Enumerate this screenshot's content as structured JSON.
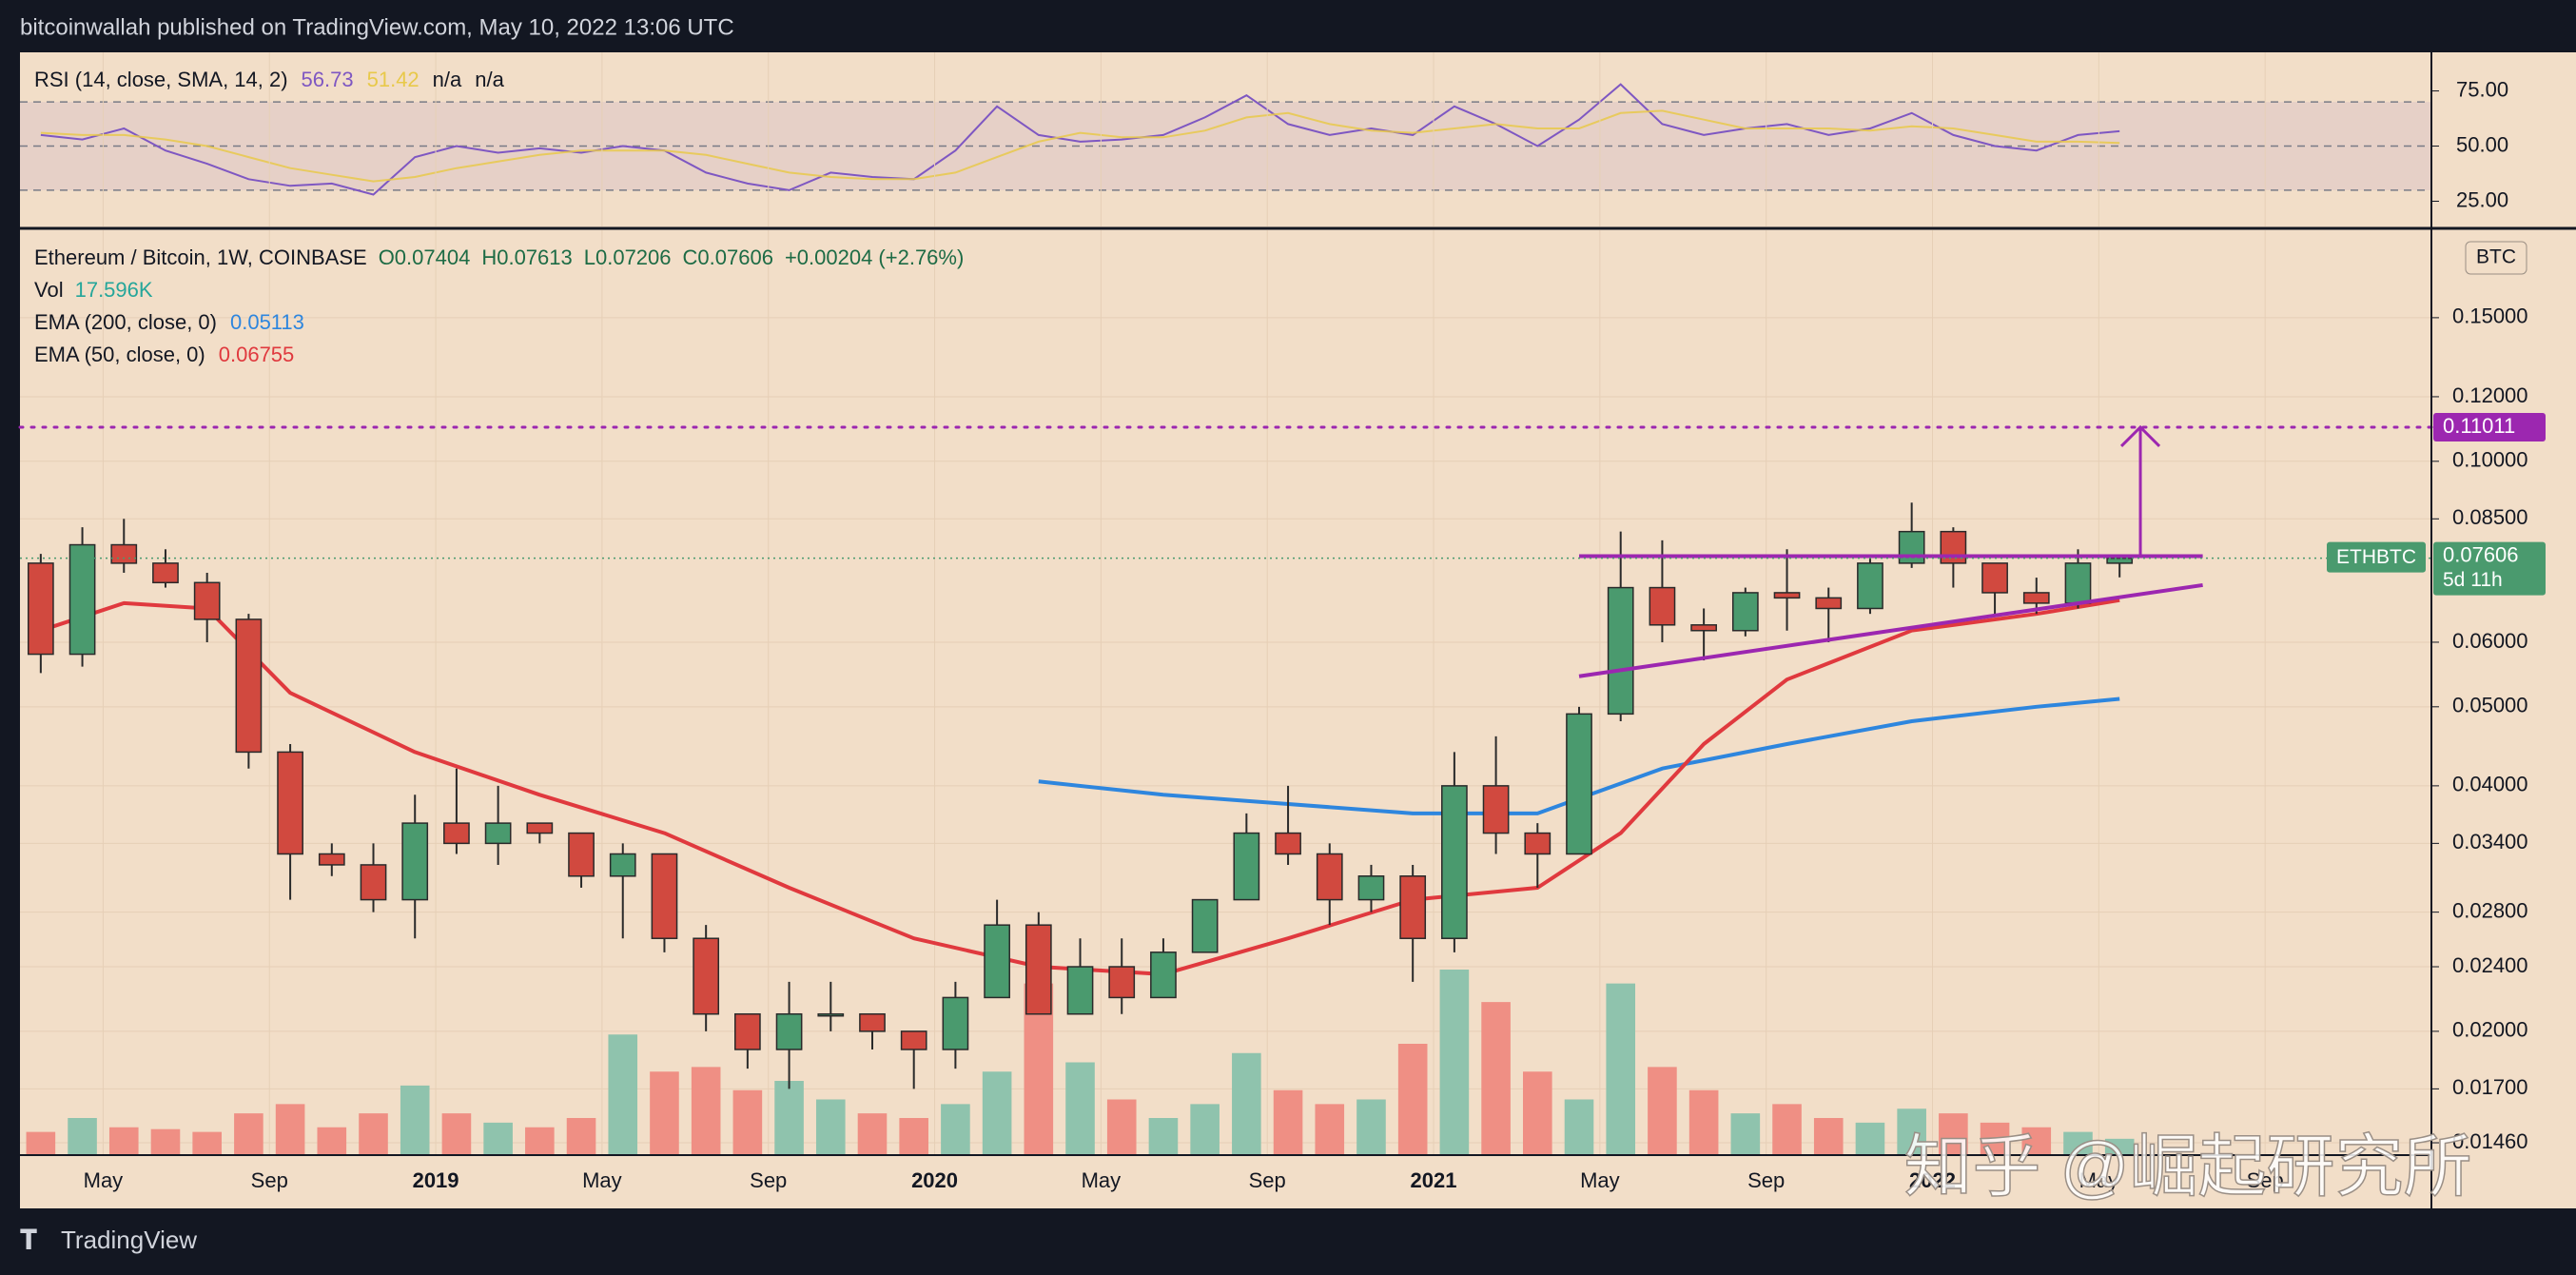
{
  "header": {
    "title": "bitcoinwallah published on TradingView.com, May 10, 2022 13:06 UTC"
  },
  "footer": {
    "brand": "TradingView"
  },
  "watermark": "知乎 @崛起研究所",
  "chart_data": [
    {
      "type": "line",
      "title": "RSI (14, close, SMA, 14, 2)",
      "legend_extra": [
        "n/a",
        "n/a"
      ],
      "x": [
        "2018-03",
        "2018-04",
        "2018-05",
        "2018-06",
        "2018-07",
        "2018-08",
        "2018-09",
        "2018-10",
        "2018-11",
        "2018-12",
        "2019-01",
        "2019-02",
        "2019-03",
        "2019-04",
        "2019-05",
        "2019-06",
        "2019-07",
        "2019-08",
        "2019-09",
        "2019-10",
        "2019-11",
        "2019-12",
        "2020-01",
        "2020-02",
        "2020-03",
        "2020-04",
        "2020-05",
        "2020-06",
        "2020-07",
        "2020-08",
        "2020-09",
        "2020-10",
        "2020-11",
        "2020-12",
        "2021-01",
        "2021-02",
        "2021-03",
        "2021-04",
        "2021-05",
        "2021-06",
        "2021-07",
        "2021-08",
        "2021-09",
        "2021-10",
        "2021-11",
        "2021-12",
        "2022-01",
        "2022-02",
        "2022-03",
        "2022-04",
        "2022-05"
      ],
      "series": [
        {
          "name": "RSI",
          "color": "#7e57c2",
          "values": [
            55,
            53,
            58,
            48,
            42,
            35,
            32,
            33,
            28,
            45,
            50,
            47,
            49,
            47,
            50,
            48,
            38,
            33,
            30,
            38,
            36,
            35,
            48,
            68,
            55,
            52,
            53,
            55,
            63,
            73,
            60,
            55,
            58,
            55,
            68,
            60,
            50,
            62,
            78,
            60,
            55,
            58,
            60,
            55,
            58,
            65,
            55,
            50,
            48,
            55,
            56.73
          ]
        },
        {
          "name": "SMA",
          "color": "#e8c94a",
          "values": [
            56,
            55,
            55,
            53,
            50,
            45,
            40,
            37,
            34,
            36,
            40,
            43,
            46,
            48,
            48,
            48,
            46,
            42,
            38,
            36,
            35,
            35,
            38,
            45,
            52,
            56,
            54,
            54,
            57,
            63,
            65,
            60,
            57,
            56,
            58,
            60,
            58,
            58,
            65,
            66,
            62,
            58,
            58,
            58,
            57,
            59,
            58,
            55,
            52,
            52,
            51.42
          ]
        }
      ],
      "levels": [
        30,
        50,
        70
      ],
      "xlim": [
        "2018-03",
        "2023-01"
      ],
      "ylim": [
        14,
        92.5
      ],
      "yticks": [
        {
          "value": 25,
          "label": "25.00"
        },
        {
          "value": 50,
          "label": "50.00"
        },
        {
          "value": 75,
          "label": "75.00"
        }
      ]
    },
    {
      "type": "candlestick",
      "title": "Ethereum / Bitcoin, 1W, COINBASE",
      "ohlc_legend": [
        "O0.07404",
        "H0.07613",
        "L0.07206",
        "C0.07606"
      ],
      "change": "+0.00204 (+2.76%)",
      "x": [
        "2018-03",
        "2018-04",
        "2018-05",
        "2018-06",
        "2018-07",
        "2018-08",
        "2018-09",
        "2018-10",
        "2018-11",
        "2018-12",
        "2019-01",
        "2019-02",
        "2019-03",
        "2019-04",
        "2019-05",
        "2019-06",
        "2019-07",
        "2019-08",
        "2019-09",
        "2019-10",
        "2019-11",
        "2019-12",
        "2020-01",
        "2020-02",
        "2020-03",
        "2020-04",
        "2020-05",
        "2020-06",
        "2020-07",
        "2020-08",
        "2020-09",
        "2020-10",
        "2020-11",
        "2020-12",
        "2021-01",
        "2021-02",
        "2021-03",
        "2021-04",
        "2021-05",
        "2021-06",
        "2021-07",
        "2021-08",
        "2021-09",
        "2021-10",
        "2021-11",
        "2021-12",
        "2022-01",
        "2022-02",
        "2022-03",
        "2022-04",
        "2022-05"
      ],
      "open": [
        0.075,
        0.058,
        0.079,
        0.075,
        0.071,
        0.064,
        0.044,
        0.033,
        0.032,
        0.029,
        0.036,
        0.034,
        0.036,
        0.035,
        0.031,
        0.033,
        0.026,
        0.021,
        0.019,
        0.021,
        0.021,
        0.02,
        0.019,
        0.022,
        0.027,
        0.021,
        0.024,
        0.022,
        0.025,
        0.029,
        0.035,
        0.033,
        0.029,
        0.031,
        0.026,
        0.04,
        0.035,
        0.033,
        0.049,
        0.07,
        0.063,
        0.062,
        0.069,
        0.068,
        0.066,
        0.075,
        0.082,
        0.075,
        0.069,
        0.067,
        0.075
      ],
      "high": [
        0.077,
        0.083,
        0.085,
        0.078,
        0.073,
        0.065,
        0.045,
        0.034,
        0.034,
        0.039,
        0.042,
        0.04,
        0.036,
        0.035,
        0.034,
        0.033,
        0.027,
        0.021,
        0.023,
        0.023,
        0.021,
        0.02,
        0.023,
        0.029,
        0.028,
        0.026,
        0.026,
        0.026,
        0.029,
        0.037,
        0.04,
        0.034,
        0.032,
        0.032,
        0.044,
        0.046,
        0.036,
        0.05,
        0.082,
        0.08,
        0.066,
        0.07,
        0.078,
        0.07,
        0.076,
        0.089,
        0.083,
        0.075,
        0.072,
        0.078,
        0.07613
      ],
      "low": [
        0.055,
        0.056,
        0.073,
        0.07,
        0.06,
        0.042,
        0.029,
        0.031,
        0.028,
        0.026,
        0.033,
        0.032,
        0.034,
        0.03,
        0.026,
        0.025,
        0.02,
        0.018,
        0.017,
        0.02,
        0.019,
        0.017,
        0.018,
        0.022,
        0.021,
        0.021,
        0.021,
        0.022,
        0.025,
        0.029,
        0.032,
        0.027,
        0.028,
        0.023,
        0.025,
        0.033,
        0.03,
        0.033,
        0.048,
        0.06,
        0.057,
        0.061,
        0.062,
        0.06,
        0.065,
        0.074,
        0.07,
        0.065,
        0.065,
        0.066,
        0.07206
      ],
      "close": [
        0.058,
        0.079,
        0.075,
        0.071,
        0.064,
        0.044,
        0.033,
        0.032,
        0.029,
        0.036,
        0.034,
        0.036,
        0.035,
        0.031,
        0.033,
        0.026,
        0.021,
        0.019,
        0.021,
        0.021,
        0.02,
        0.019,
        0.022,
        0.027,
        0.021,
        0.024,
        0.022,
        0.025,
        0.029,
        0.035,
        0.033,
        0.029,
        0.031,
        0.026,
        0.04,
        0.035,
        0.033,
        0.049,
        0.07,
        0.063,
        0.062,
        0.069,
        0.068,
        0.066,
        0.075,
        0.082,
        0.075,
        0.069,
        0.067,
        0.075,
        0.07606
      ],
      "up_color": "#4a9a6e",
      "down_color": "#d1493f",
      "volume": {
        "name": "Vol",
        "last_label": "17.596K",
        "up_color": "#8fc3ad",
        "down_color": "#ef8f84",
        "values": [
          25,
          40,
          30,
          28,
          25,
          45,
          55,
          30,
          45,
          75,
          45,
          35,
          30,
          40,
          130,
          90,
          95,
          70,
          80,
          60,
          45,
          40,
          55,
          90,
          185,
          100,
          60,
          40,
          55,
          110,
          70,
          55,
          60,
          120,
          200,
          165,
          90,
          60,
          185,
          95,
          70,
          45,
          55,
          40,
          35,
          50,
          45,
          35,
          30,
          25,
          17.596
        ]
      },
      "series": [
        {
          "name": "EMA (200, close, 0)",
          "color": "#2e86de",
          "x": [
            "2020-03",
            "2020-06",
            "2020-09",
            "2020-12",
            "2021-03",
            "2021-06",
            "2021-09",
            "2021-12",
            "2022-03",
            "2022-05"
          ],
          "values": [
            0.0405,
            0.039,
            0.038,
            0.037,
            0.037,
            0.042,
            0.045,
            0.048,
            0.05,
            0.05113
          ]
        },
        {
          "name": "EMA (50, close, 0)",
          "color": "#e0393e",
          "x": [
            "2018-03",
            "2018-05",
            "2018-07",
            "2018-09",
            "2018-12",
            "2019-03",
            "2019-06",
            "2019-09",
            "2019-12",
            "2020-03",
            "2020-06",
            "2020-09",
            "2020-12",
            "2021-03",
            "2021-05",
            "2021-07",
            "2021-09",
            "2021-12",
            "2022-03",
            "2022-05"
          ],
          "values": [
            0.062,
            0.067,
            0.066,
            0.052,
            0.044,
            0.039,
            0.035,
            0.03,
            0.026,
            0.024,
            0.0235,
            0.026,
            0.029,
            0.03,
            0.035,
            0.045,
            0.054,
            0.062,
            0.065,
            0.06755
          ]
        }
      ],
      "drawings": {
        "target": {
          "value": 0.11011,
          "color": "#9c27b0"
        },
        "resistance": {
          "x": [
            "2021-04",
            "2022-07"
          ],
          "values": [
            0.0765,
            0.0765
          ],
          "color": "#9c27b0"
        },
        "support": {
          "x": [
            "2021-04",
            "2022-07"
          ],
          "values": [
            0.0545,
            0.0705
          ],
          "color": "#9c27b0"
        },
        "arrow": {
          "x": "2022-05",
          "values": [
            0.0765,
            0.11011
          ],
          "color": "#9c27b0"
        }
      },
      "last": {
        "value": 0.07606,
        "symbol": "ETHBTC",
        "countdown": "5d 11h",
        "color": "#4a9a6e"
      },
      "currency": "BTC",
      "log_scale": true,
      "grid": true,
      "xlim": [
        "2018-03",
        "2023-01"
      ],
      "ylim": [
        0.0141,
        0.192
      ],
      "yticks": [
        {
          "value": 0.0146,
          "label": "0.01460"
        },
        {
          "value": 0.017,
          "label": "0.01700"
        },
        {
          "value": 0.02,
          "label": "0.02000"
        },
        {
          "value": 0.024,
          "label": "0.02400"
        },
        {
          "value": 0.028,
          "label": "0.02800"
        },
        {
          "value": 0.034,
          "label": "0.03400"
        },
        {
          "value": 0.04,
          "label": "0.04000"
        },
        {
          "value": 0.05,
          "label": "0.05000"
        },
        {
          "value": 0.06,
          "label": "0.06000"
        },
        {
          "value": 0.085,
          "label": "0.08500"
        },
        {
          "value": 0.1,
          "label": "0.10000"
        },
        {
          "value": 0.12,
          "label": "0.12000"
        },
        {
          "value": 0.15,
          "label": "0.15000"
        }
      ],
      "xticks": [
        {
          "value": "2018-05",
          "label": "May"
        },
        {
          "value": "2018-09",
          "label": "Sep"
        },
        {
          "value": "2019-01",
          "label": "2019"
        },
        {
          "value": "2019-05",
          "label": "May"
        },
        {
          "value": "2019-09",
          "label": "Sep"
        },
        {
          "value": "2020-01",
          "label": "2020"
        },
        {
          "value": "2020-05",
          "label": "May"
        },
        {
          "value": "2020-09",
          "label": "Sep"
        },
        {
          "value": "2021-01",
          "label": "2021"
        },
        {
          "value": "2021-05",
          "label": "May"
        },
        {
          "value": "2021-09",
          "label": "Sep"
        },
        {
          "value": "2022-01",
          "label": "2022"
        },
        {
          "value": "2022-05",
          "label": "May"
        },
        {
          "value": "2022-09",
          "label": "Sep"
        }
      ]
    }
  ]
}
